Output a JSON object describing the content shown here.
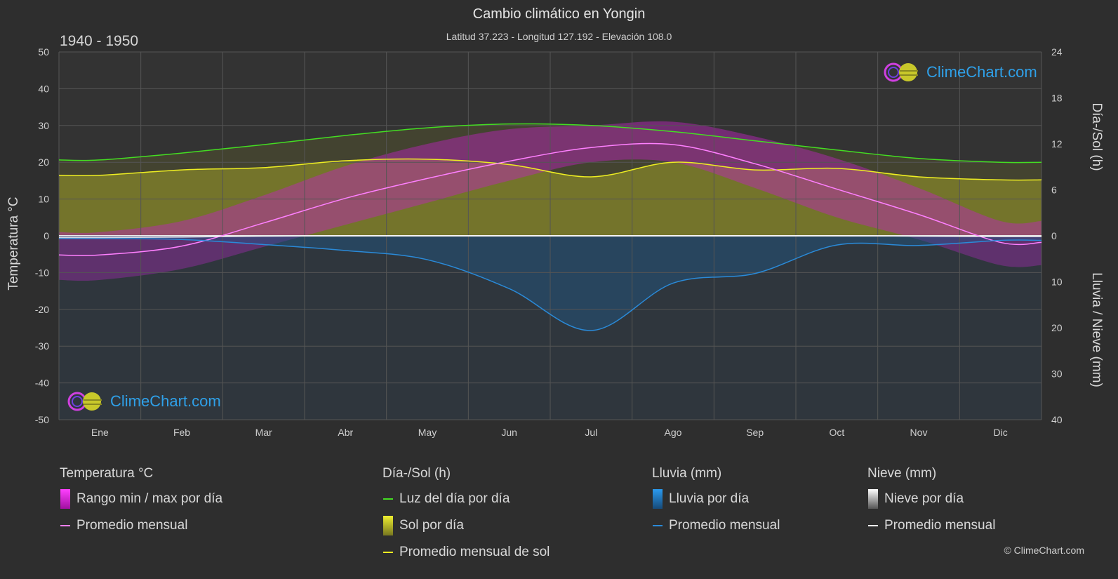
{
  "header": {
    "title": "Cambio climático en Yongin",
    "subtitle": "Latitud 37.223 - Longitud 127.192 - Elevación 108.0",
    "period": "1940 - 1950"
  },
  "axes": {
    "left_label": "Temperatura °C",
    "right_top_label": "Día-/Sol (h)",
    "right_bottom_label": "Lluvia / Nieve (mm)"
  },
  "logo": {
    "text": "ClimeChart.com"
  },
  "copyright": "© ClimeChart.com",
  "legend": {
    "temperature": {
      "title": "Temperatura °C",
      "range_label": "Rango min / max por día",
      "avg_label": "Promedio mensual"
    },
    "sun": {
      "title": "Día-/Sol (h)",
      "daylight_label": "Luz del día por día",
      "sun_label": "Sol por día",
      "sun_avg_label": "Promedio mensual de sol"
    },
    "rain": {
      "title": "Lluvia (mm)",
      "rain_label": "Lluvia por día",
      "avg_label": "Promedio mensual"
    },
    "snow": {
      "title": "Nieve (mm)",
      "snow_label": "Nieve por día",
      "avg_label": "Promedio mensual"
    }
  },
  "colors": {
    "background": "#2e2e2e",
    "grid": "#555555",
    "temp_range": "#e020e0",
    "temp_avg": "#ff80ff",
    "daylight": "#44dd22",
    "sunshine": "#bbbb33",
    "sun_avg": "#eeee22",
    "rain": "#2a8ad8",
    "rain_avg": "#2a8ad8",
    "snow": "#cccccc",
    "snow_avg": "#ffffff",
    "logo_text": "#2fa0e8"
  },
  "chart_data": {
    "type": "line",
    "categories": [
      "Ene",
      "Feb",
      "Mar",
      "Abr",
      "May",
      "Jun",
      "Jul",
      "Ago",
      "Sep",
      "Oct",
      "Nov",
      "Dic"
    ],
    "y_left": {
      "label": "Temperatura °C",
      "range": [
        -50,
        50
      ],
      "ticks": [
        50,
        40,
        30,
        20,
        10,
        0,
        -10,
        -20,
        -30,
        -40,
        -50
      ]
    },
    "y_right_top": {
      "label": "Día-/Sol (h)",
      "range": [
        0,
        24
      ],
      "ticks": [
        24,
        18,
        12,
        6,
        0
      ]
    },
    "y_right_bottom": {
      "label": "Lluvia / Nieve (mm)",
      "range": [
        0,
        40
      ],
      "ticks": [
        0,
        10,
        20,
        30,
        40
      ]
    },
    "series": [
      {
        "name": "Promedio mensual",
        "axis": "temperature",
        "values": [
          -5.2,
          -2.8,
          3.5,
          10.2,
          15.6,
          20.3,
          24.0,
          24.8,
          19.6,
          12.7,
          5.8,
          -1.8
        ]
      },
      {
        "name": "Luz del día por día",
        "axis": "sun_hours",
        "values": [
          9.9,
          10.8,
          11.9,
          13.1,
          14.1,
          14.6,
          14.4,
          13.6,
          12.4,
          11.2,
          10.1,
          9.6
        ]
      },
      {
        "name": "Promedio mensual de sol",
        "axis": "sun_hours",
        "values": [
          7.9,
          8.6,
          8.9,
          9.8,
          10.0,
          9.3,
          7.7,
          9.6,
          8.6,
          8.8,
          7.7,
          7.3
        ]
      },
      {
        "name": "Promedio mensual",
        "axis": "rain_mm",
        "values": [
          0.6,
          0.8,
          1.9,
          3.2,
          5.2,
          11.5,
          20.6,
          10.3,
          8.2,
          2.0,
          2.1,
          1.0
        ]
      },
      {
        "name": "Promedio mensual",
        "axis": "snow_mm",
        "values": [
          0.4,
          0.3,
          0.1,
          0,
          0,
          0,
          0,
          0,
          0,
          0,
          0.1,
          0.2
        ]
      }
    ],
    "temp_range_max": [
      1,
      4,
      11,
      19,
      25,
      29,
      30,
      31,
      27,
      21,
      13,
      4
    ],
    "temp_range_min": [
      -12,
      -9,
      -3,
      3,
      9,
      15,
      20,
      20,
      13,
      5,
      -1,
      -8
    ],
    "grid": true
  }
}
